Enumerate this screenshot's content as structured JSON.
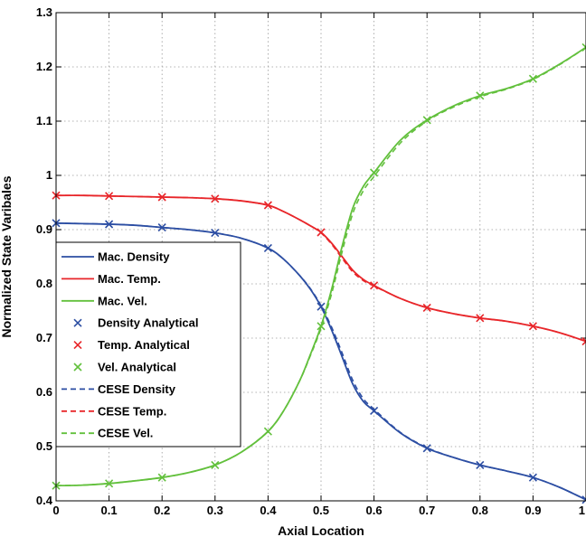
{
  "chart_data": {
    "type": "line",
    "xlabel": "Axial Location",
    "ylabel": "Normalized State Varibales",
    "xlim": [
      0,
      1
    ],
    "ylim": [
      0.4,
      1.3
    ],
    "xticks": [
      "0",
      "0.1",
      "0.2",
      "0.3",
      "0.4",
      "0.5",
      "0.6",
      "0.7",
      "0.8",
      "0.9",
      "1"
    ],
    "yticks": [
      "0.4",
      "0.5",
      "0.6",
      "0.7",
      "0.8",
      "0.9",
      "1",
      "1.1",
      "1.2",
      "1.3"
    ],
    "grid": true,
    "legend_position": "left",
    "colors": {
      "density": "#2c4ea3",
      "temperature": "#e8262a",
      "velocity": "#62c03c"
    },
    "series": [
      {
        "name": "Mac. Density",
        "kind": "solid",
        "color": "#2c4ea3",
        "x": [
          0,
          0.05,
          0.1,
          0.15,
          0.2,
          0.25,
          0.3,
          0.35,
          0.4,
          0.43,
          0.46,
          0.48,
          0.5,
          0.52,
          0.54,
          0.56,
          0.58,
          0.6,
          0.65,
          0.7,
          0.75,
          0.8,
          0.85,
          0.9,
          0.95,
          1.0
        ],
        "y": [
          0.912,
          0.911,
          0.91,
          0.908,
          0.904,
          0.9,
          0.894,
          0.884,
          0.866,
          0.845,
          0.815,
          0.79,
          0.758,
          0.715,
          0.665,
          0.615,
          0.583,
          0.566,
          0.525,
          0.497,
          0.48,
          0.466,
          0.455,
          0.443,
          0.425,
          0.402
        ]
      },
      {
        "name": "Mac. Temp.",
        "kind": "solid",
        "color": "#e8262a",
        "x": [
          0,
          0.05,
          0.1,
          0.15,
          0.2,
          0.25,
          0.3,
          0.35,
          0.4,
          0.43,
          0.46,
          0.48,
          0.5,
          0.52,
          0.54,
          0.56,
          0.58,
          0.6,
          0.65,
          0.7,
          0.75,
          0.8,
          0.85,
          0.9,
          0.95,
          1.0
        ],
        "y": [
          0.963,
          0.963,
          0.962,
          0.961,
          0.96,
          0.959,
          0.957,
          0.953,
          0.945,
          0.933,
          0.918,
          0.907,
          0.895,
          0.875,
          0.85,
          0.825,
          0.808,
          0.797,
          0.773,
          0.756,
          0.745,
          0.737,
          0.731,
          0.722,
          0.71,
          0.694
        ]
      },
      {
        "name": "Mac. Vel.",
        "kind": "solid",
        "color": "#62c03c",
        "x": [
          0,
          0.05,
          0.1,
          0.15,
          0.2,
          0.25,
          0.3,
          0.35,
          0.4,
          0.43,
          0.46,
          0.48,
          0.5,
          0.52,
          0.54,
          0.56,
          0.58,
          0.6,
          0.65,
          0.7,
          0.75,
          0.8,
          0.85,
          0.9,
          0.95,
          1.0
        ],
        "y": [
          0.428,
          0.429,
          0.432,
          0.437,
          0.443,
          0.452,
          0.466,
          0.49,
          0.528,
          0.567,
          0.622,
          0.67,
          0.722,
          0.79,
          0.87,
          0.94,
          0.98,
          1.005,
          1.065,
          1.102,
          1.128,
          1.147,
          1.16,
          1.178,
          1.205,
          1.236
        ]
      },
      {
        "name": "Density Analytical",
        "kind": "marker",
        "color": "#2c4ea3",
        "x": [
          0,
          0.1,
          0.2,
          0.3,
          0.4,
          0.5,
          0.6,
          0.7,
          0.8,
          0.9,
          1.0
        ],
        "y": [
          0.912,
          0.91,
          0.904,
          0.894,
          0.866,
          0.758,
          0.566,
          0.497,
          0.466,
          0.443,
          0.402
        ]
      },
      {
        "name": "Temp. Analytical",
        "kind": "marker",
        "color": "#e8262a",
        "x": [
          0,
          0.1,
          0.2,
          0.3,
          0.4,
          0.5,
          0.6,
          0.7,
          0.8,
          0.9,
          1.0
        ],
        "y": [
          0.963,
          0.962,
          0.96,
          0.957,
          0.945,
          0.895,
          0.797,
          0.756,
          0.737,
          0.722,
          0.694
        ]
      },
      {
        "name": "Vel. Analytical",
        "kind": "marker",
        "color": "#62c03c",
        "x": [
          0,
          0.1,
          0.2,
          0.3,
          0.4,
          0.5,
          0.6,
          0.7,
          0.8,
          0.9,
          1.0
        ],
        "y": [
          0.428,
          0.432,
          0.443,
          0.466,
          0.528,
          0.722,
          1.005,
          1.102,
          1.147,
          1.178,
          1.236
        ]
      },
      {
        "name": "CESE Density",
        "kind": "dashed",
        "color": "#2c4ea3",
        "x": [
          0,
          0.05,
          0.1,
          0.15,
          0.2,
          0.25,
          0.3,
          0.35,
          0.4,
          0.43,
          0.46,
          0.48,
          0.5,
          0.52,
          0.54,
          0.56,
          0.58,
          0.6,
          0.65,
          0.7,
          0.75,
          0.8,
          0.85,
          0.9,
          0.95,
          1.0
        ],
        "y": [
          0.912,
          0.911,
          0.91,
          0.908,
          0.904,
          0.9,
          0.894,
          0.884,
          0.866,
          0.845,
          0.815,
          0.791,
          0.76,
          0.72,
          0.672,
          0.622,
          0.588,
          0.569,
          0.526,
          0.498,
          0.48,
          0.466,
          0.455,
          0.443,
          0.425,
          0.402
        ]
      },
      {
        "name": "CESE Temp.",
        "kind": "dashed",
        "color": "#e8262a",
        "x": [
          0,
          0.05,
          0.1,
          0.15,
          0.2,
          0.25,
          0.3,
          0.35,
          0.4,
          0.43,
          0.46,
          0.48,
          0.5,
          0.52,
          0.54,
          0.56,
          0.58,
          0.6,
          0.65,
          0.7,
          0.75,
          0.8,
          0.85,
          0.9,
          0.95,
          1.0
        ],
        "y": [
          0.963,
          0.963,
          0.962,
          0.961,
          0.96,
          0.959,
          0.957,
          0.953,
          0.945,
          0.933,
          0.918,
          0.907,
          0.894,
          0.873,
          0.847,
          0.822,
          0.806,
          0.796,
          0.773,
          0.756,
          0.745,
          0.737,
          0.731,
          0.722,
          0.71,
          0.694
        ]
      },
      {
        "name": "CESE Vel.",
        "kind": "dashed",
        "color": "#62c03c",
        "x": [
          0,
          0.05,
          0.1,
          0.15,
          0.2,
          0.25,
          0.3,
          0.35,
          0.4,
          0.43,
          0.46,
          0.48,
          0.5,
          0.52,
          0.54,
          0.56,
          0.58,
          0.6,
          0.65,
          0.7,
          0.75,
          0.8,
          0.85,
          0.9,
          0.95,
          1.0
        ],
        "y": [
          0.428,
          0.429,
          0.432,
          0.437,
          0.443,
          0.452,
          0.466,
          0.49,
          0.528,
          0.567,
          0.622,
          0.668,
          0.718,
          0.782,
          0.86,
          0.93,
          0.972,
          0.998,
          1.06,
          1.1,
          1.126,
          1.145,
          1.159,
          1.177,
          1.204,
          1.236
        ]
      }
    ]
  }
}
